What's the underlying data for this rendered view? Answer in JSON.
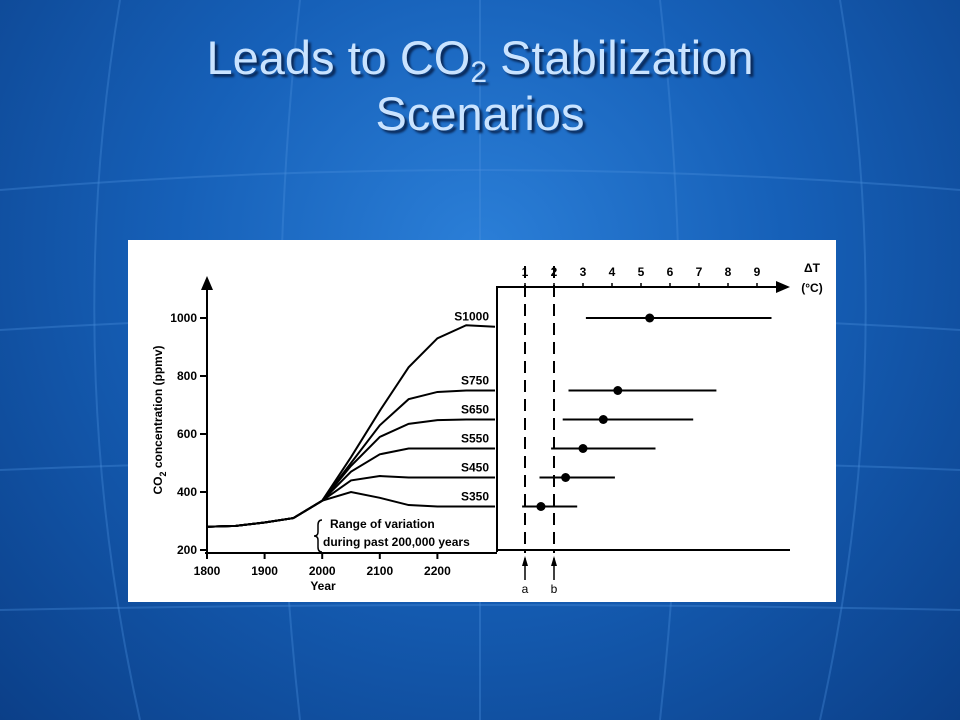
{
  "slide": {
    "title": {
      "before": "Leads to CO",
      "sub": "2",
      "after": " Stabilization",
      "line2": "Scenarios"
    }
  },
  "chart_data": [
    {
      "type": "line",
      "x_label": "Year",
      "y_label": {
        "before": "CO",
        "sub": "2",
        "after": " concentration (ppmv)"
      },
      "annotation": [
        "Range of variation",
        "during past 200,000 years"
      ],
      "x": [
        1800,
        1850,
        1900,
        1950,
        2000,
        2050,
        2100,
        2150,
        2200,
        2250,
        2300
      ],
      "xlim": [
        1800,
        2300
      ],
      "xticks": [
        1800,
        1900,
        2000,
        2100,
        2200
      ],
      "ylim": [
        200,
        1100
      ],
      "yticks": [
        200,
        400,
        600,
        800,
        1000
      ],
      "series": [
        {
          "name": "S1000",
          "color": "#000000",
          "values": [
            280,
            283,
            295,
            310,
            370,
            520,
            680,
            830,
            930,
            975,
            970
          ]
        },
        {
          "name": "S750",
          "color": "#000000",
          "values": [
            280,
            283,
            295,
            310,
            370,
            500,
            630,
            720,
            745,
            750,
            750
          ]
        },
        {
          "name": "S650",
          "color": "#000000",
          "values": [
            280,
            283,
            295,
            310,
            370,
            490,
            590,
            635,
            648,
            650,
            650
          ]
        },
        {
          "name": "S550",
          "color": "#000000",
          "values": [
            280,
            283,
            295,
            310,
            370,
            470,
            530,
            550,
            550,
            550,
            550
          ]
        },
        {
          "name": "S450",
          "color": "#000000",
          "values": [
            280,
            283,
            295,
            310,
            370,
            440,
            455,
            450,
            450,
            450,
            450
          ]
        },
        {
          "name": "S350",
          "color": "#000000",
          "values": [
            280,
            283,
            295,
            310,
            370,
            400,
            380,
            355,
            350,
            350,
            350
          ]
        }
      ]
    },
    {
      "type": "range",
      "x_label": "ΔT",
      "x_unit": "(°C)",
      "xlim": [
        0,
        10
      ],
      "xticks": [
        1,
        2,
        3,
        4,
        5,
        6,
        7,
        8,
        9
      ],
      "markers": [
        {
          "value": 1,
          "label": "a"
        },
        {
          "value": 2,
          "label": "b"
        }
      ],
      "rows": [
        {
          "level": 1000,
          "low": 3.1,
          "mid": 5.3,
          "high": 9.5
        },
        {
          "level": 750,
          "low": 2.5,
          "mid": 4.2,
          "high": 7.6
        },
        {
          "level": 650,
          "low": 2.3,
          "mid": 3.7,
          "high": 6.8
        },
        {
          "level": 550,
          "low": 1.9,
          "mid": 3.0,
          "high": 5.5
        },
        {
          "level": 450,
          "low": 1.5,
          "mid": 2.4,
          "high": 4.1
        },
        {
          "level": 350,
          "low": 0.9,
          "mid": 1.55,
          "high": 2.8
        }
      ]
    }
  ]
}
